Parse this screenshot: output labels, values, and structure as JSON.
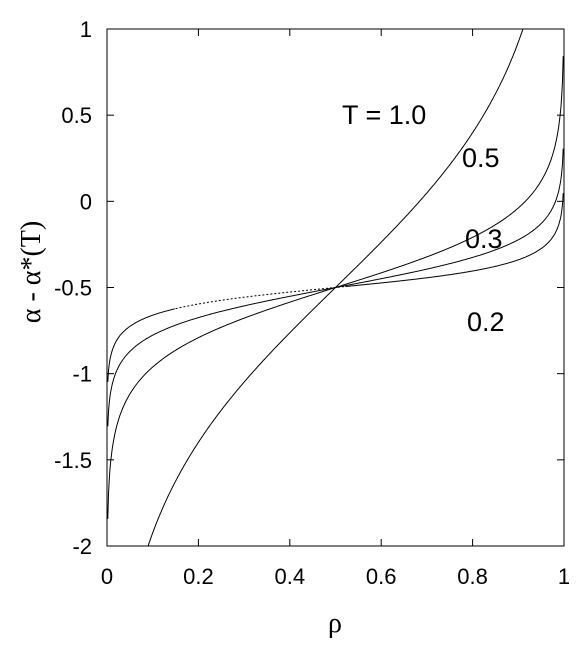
{
  "chart_data": {
    "type": "line",
    "xlabel": "ρ",
    "ylabel": "α - α*(T)",
    "xlim": [
      0,
      1
    ],
    "ylim": [
      -2,
      1
    ],
    "x_ticks": [
      0,
      0.2,
      0.4,
      0.6,
      0.8,
      1
    ],
    "x_tick_labels": [
      "0",
      "0.2",
      "0.4",
      "0.6",
      "0.8",
      "1"
    ],
    "y_ticks": [
      1,
      0.5,
      0,
      -0.5,
      -1,
      -1.5,
      -2
    ],
    "y_tick_labels": [
      "1",
      "0.5",
      "0",
      "-0.5",
      "-1",
      "-1.5",
      "-2"
    ],
    "grid": false,
    "series": [
      {
        "name": "T = 1.0",
        "T": 1.0
      },
      {
        "name": "0.5",
        "T": 0.5
      },
      {
        "name": "0.3",
        "T": 0.3
      },
      {
        "name": "0.2",
        "T": 0.2
      }
    ],
    "dashed_segment": {
      "x_range": [
        0.15,
        0.52
      ]
    }
  }
}
